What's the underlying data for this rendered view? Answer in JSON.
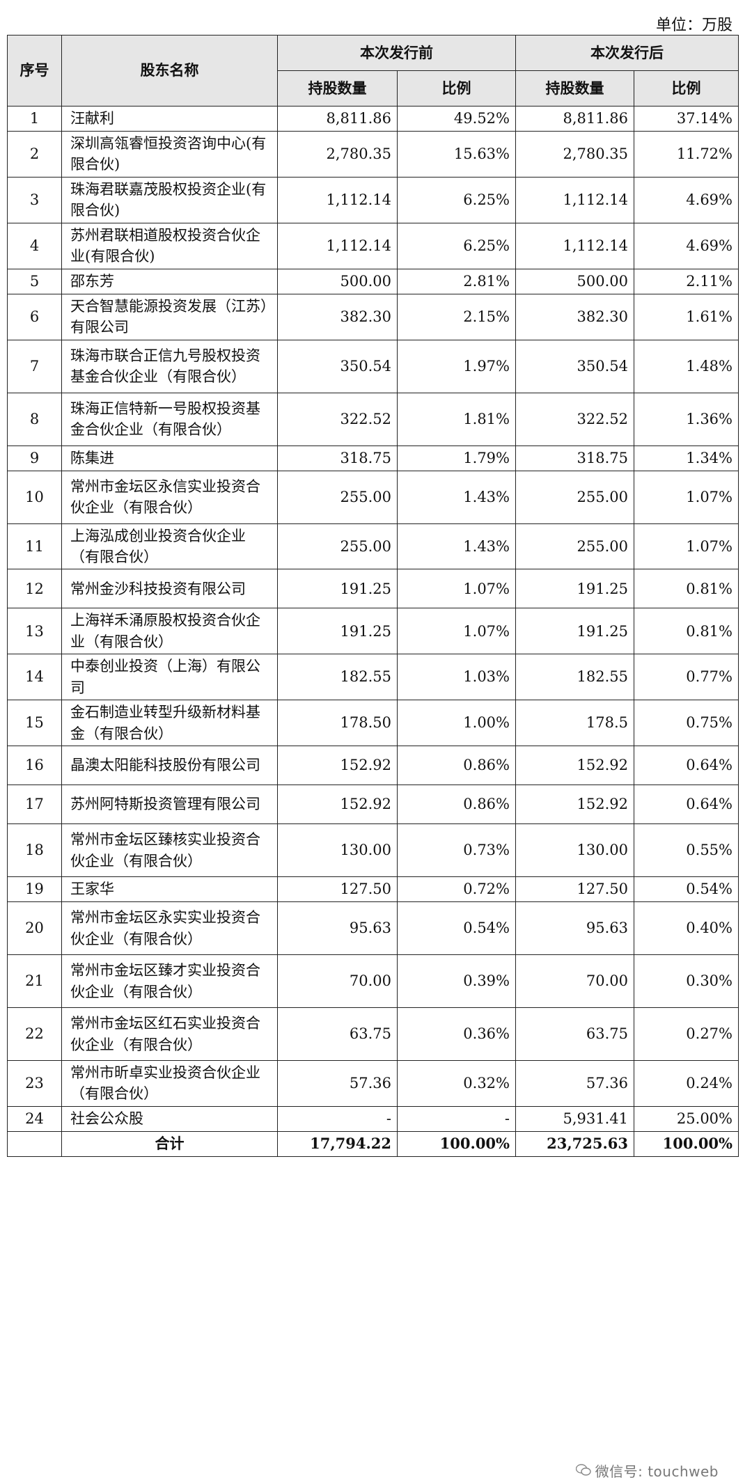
{
  "unit": "单位：万股",
  "header": {
    "idx": "序号",
    "name": "股东名称",
    "before": "本次发行前",
    "after": "本次发行后",
    "shares": "持股数量",
    "ratio": "比例"
  },
  "rows": [
    {
      "idx": "1",
      "name": "汪献利",
      "before_shares": "8,811.86",
      "before_ratio": "49.52%",
      "after_shares": "8,811.86",
      "after_ratio": "37.14%"
    },
    {
      "idx": "2",
      "name": "深圳高瓴睿恒投资咨询中心(有限合伙)",
      "before_shares": "2,780.35",
      "before_ratio": "15.63%",
      "after_shares": "2,780.35",
      "after_ratio": "11.72%"
    },
    {
      "idx": "3",
      "name": "珠海君联嘉茂股权投资企业(有限合伙)",
      "before_shares": "1,112.14",
      "before_ratio": "6.25%",
      "after_shares": "1,112.14",
      "after_ratio": "4.69%"
    },
    {
      "idx": "4",
      "name": "苏州君联相道股权投资合伙企业(有限合伙)",
      "before_shares": "1,112.14",
      "before_ratio": "6.25%",
      "after_shares": "1,112.14",
      "after_ratio": "4.69%"
    },
    {
      "idx": "5",
      "name": "邵东芳",
      "before_shares": "500.00",
      "before_ratio": "2.81%",
      "after_shares": "500.00",
      "after_ratio": "2.11%"
    },
    {
      "idx": "6",
      "name": "天合智慧能源投资发展（江苏）有限公司",
      "before_shares": "382.30",
      "before_ratio": "2.15%",
      "after_shares": "382.30",
      "after_ratio": "1.61%"
    },
    {
      "idx": "7",
      "name": "珠海市联合正信九号股权投资基金合伙企业（有限合伙）",
      "before_shares": "350.54",
      "before_ratio": "1.97%",
      "after_shares": "350.54",
      "after_ratio": "1.48%"
    },
    {
      "idx": "8",
      "name": "珠海正信特新一号股权投资基金合伙企业（有限合伙）",
      "before_shares": "322.52",
      "before_ratio": "1.81%",
      "after_shares": "322.52",
      "after_ratio": "1.36%"
    },
    {
      "idx": "9",
      "name": "陈集进",
      "before_shares": "318.75",
      "before_ratio": "1.79%",
      "after_shares": "318.75",
      "after_ratio": "1.34%"
    },
    {
      "idx": "10",
      "name": "常州市金坛区永信实业投资合伙企业（有限合伙）",
      "before_shares": "255.00",
      "before_ratio": "1.43%",
      "after_shares": "255.00",
      "after_ratio": "1.07%"
    },
    {
      "idx": "11",
      "name": "上海泓成创业投资合伙企业（有限合伙）",
      "before_shares": "255.00",
      "before_ratio": "1.43%",
      "after_shares": "255.00",
      "after_ratio": "1.07%"
    },
    {
      "idx": "12",
      "name": "常州金沙科技投资有限公司",
      "before_shares": "191.25",
      "before_ratio": "1.07%",
      "after_shares": "191.25",
      "after_ratio": "0.81%"
    },
    {
      "idx": "13",
      "name": "上海祥禾涌原股权投资合伙企业（有限合伙）",
      "before_shares": "191.25",
      "before_ratio": "1.07%",
      "after_shares": "191.25",
      "after_ratio": "0.81%"
    },
    {
      "idx": "14",
      "name": "中泰创业投资（上海）有限公司",
      "before_shares": "182.55",
      "before_ratio": "1.03%",
      "after_shares": "182.55",
      "after_ratio": "0.77%"
    },
    {
      "idx": "15",
      "name": "金石制造业转型升级新材料基金（有限合伙）",
      "before_shares": "178.50",
      "before_ratio": "1.00%",
      "after_shares": "178.5",
      "after_ratio": "0.75%"
    },
    {
      "idx": "16",
      "name": "晶澳太阳能科技股份有限公司",
      "before_shares": "152.92",
      "before_ratio": "0.86%",
      "after_shares": "152.92",
      "after_ratio": "0.64%"
    },
    {
      "idx": "17",
      "name": "苏州阿特斯投资管理有限公司",
      "before_shares": "152.92",
      "before_ratio": "0.86%",
      "after_shares": "152.92",
      "after_ratio": "0.64%"
    },
    {
      "idx": "18",
      "name": "常州市金坛区臻核实业投资合伙企业（有限合伙）",
      "before_shares": "130.00",
      "before_ratio": "0.73%",
      "after_shares": "130.00",
      "after_ratio": "0.55%"
    },
    {
      "idx": "19",
      "name": "王家华",
      "before_shares": "127.50",
      "before_ratio": "0.72%",
      "after_shares": "127.50",
      "after_ratio": "0.54%"
    },
    {
      "idx": "20",
      "name": "常州市金坛区永实实业投资合伙企业（有限合伙）",
      "before_shares": "95.63",
      "before_ratio": "0.54%",
      "after_shares": "95.63",
      "after_ratio": "0.40%"
    },
    {
      "idx": "21",
      "name": "常州市金坛区臻才实业投资合伙企业（有限合伙）",
      "before_shares": "70.00",
      "before_ratio": "0.39%",
      "after_shares": "70.00",
      "after_ratio": "0.30%"
    },
    {
      "idx": "22",
      "name": "常州市金坛区红石实业投资合伙企业（有限合伙）",
      "before_shares": "63.75",
      "before_ratio": "0.36%",
      "after_shares": "63.75",
      "after_ratio": "0.27%"
    },
    {
      "idx": "23",
      "name": "常州市昕卓实业投资合伙企业（有限合伙）",
      "before_shares": "57.36",
      "before_ratio": "0.32%",
      "after_shares": "57.36",
      "after_ratio": "0.24%"
    },
    {
      "idx": "24",
      "name": "社会公众股",
      "before_shares": "-",
      "before_ratio": "-",
      "after_shares": "5,931.41",
      "after_ratio": "25.00%"
    }
  ],
  "total": {
    "label": "合计",
    "before_shares": "17,794.22",
    "before_ratio": "100.00%",
    "after_shares": "23,725.63",
    "after_ratio": "100.00%"
  },
  "watermark": {
    "icon": "wechat-icon",
    "text": "微信号: touchweb"
  }
}
